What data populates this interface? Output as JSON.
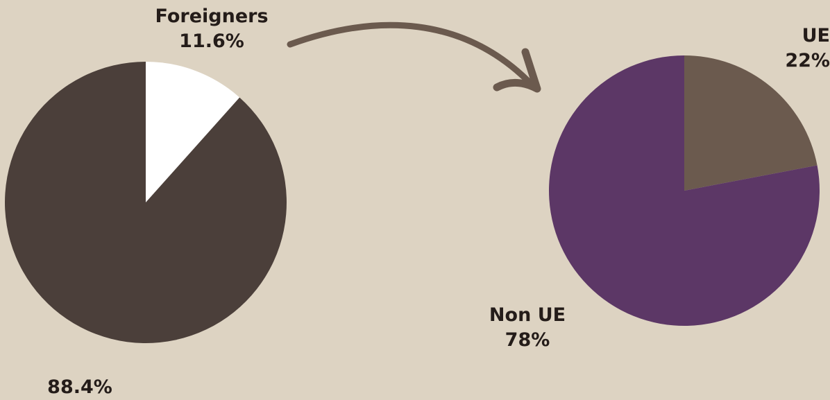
{
  "colors": {
    "background": "#ddd3c2",
    "residents": "#4b3f3a",
    "foreigners": "#ffffff",
    "ue": "#6b5a4e",
    "non_ue": "#5c3766",
    "arrow": "#6b5a4e",
    "text": "#241c19"
  },
  "chart_data": [
    {
      "type": "pie",
      "slices": [
        {
          "label": "Foreigners",
          "value": 11.6,
          "display": "11.6%",
          "color": "#ffffff"
        },
        {
          "label": "",
          "value": 88.4,
          "display": "88.4%",
          "color": "#4b3f3a"
        }
      ]
    },
    {
      "type": "pie",
      "slices": [
        {
          "label": "UE",
          "value": 22,
          "display": "22%",
          "color": "#6b5a4e"
        },
        {
          "label": "Non UE",
          "value": 78,
          "display": "78%",
          "color": "#5c3766"
        }
      ]
    }
  ],
  "connector_icon": "curved-arrow-icon"
}
